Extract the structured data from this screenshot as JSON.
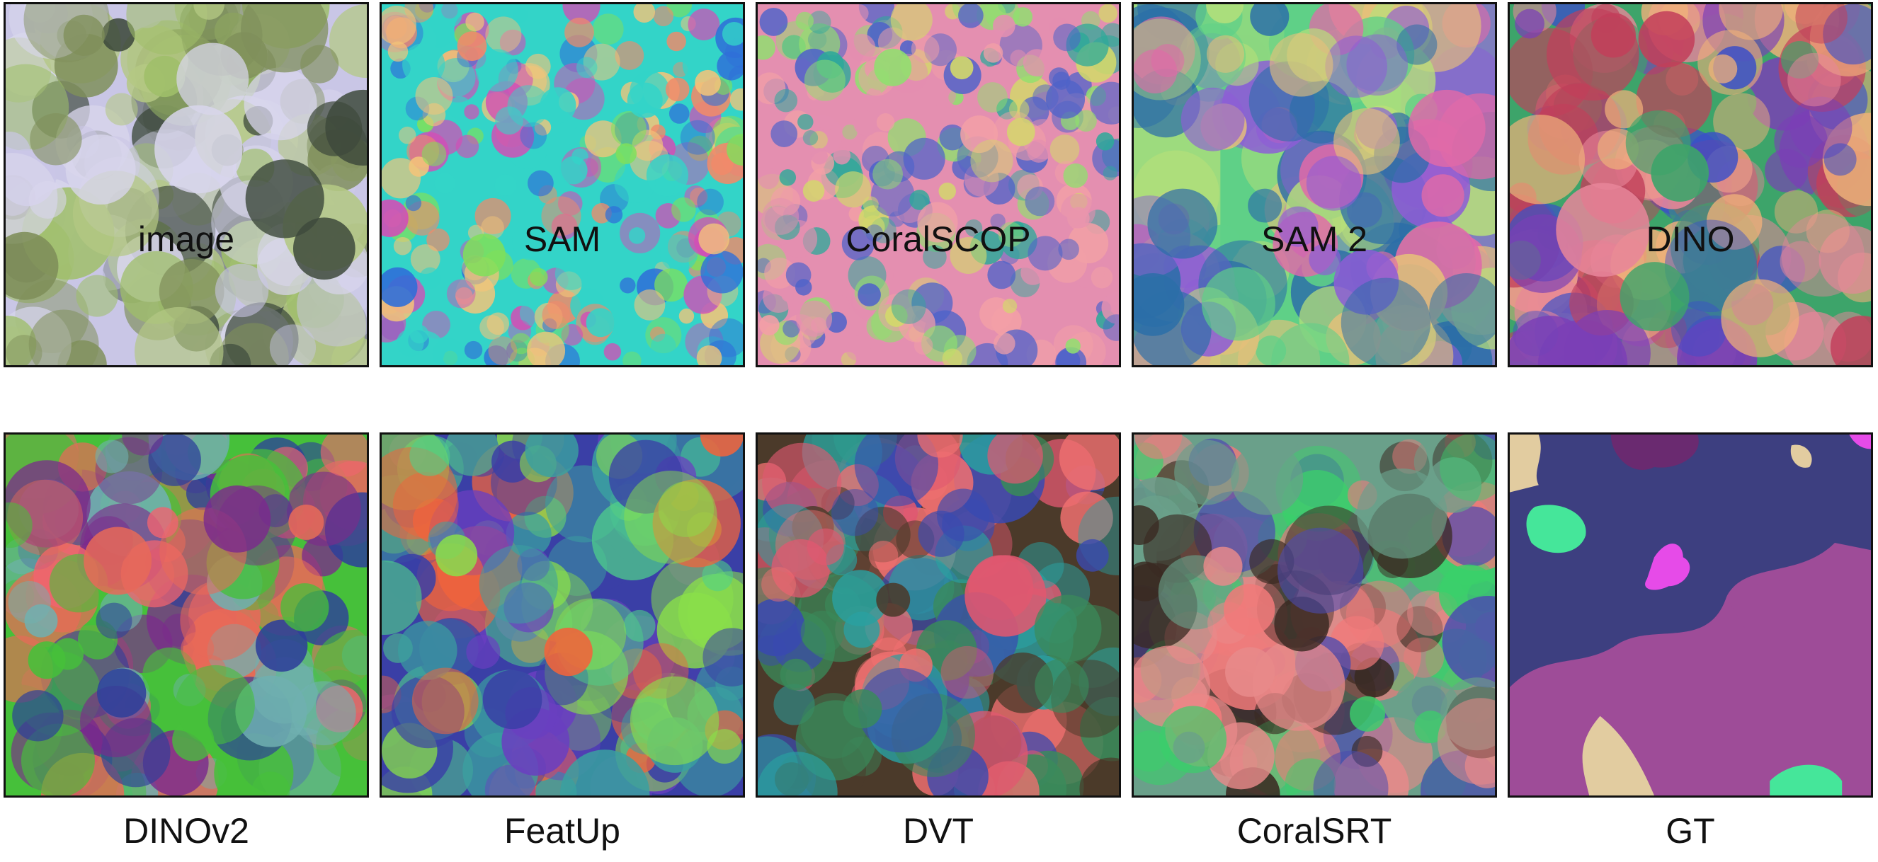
{
  "figure": {
    "panels": [
      {
        "caption": "image",
        "palette": [
          "#c9c6e6",
          "#9fbf6a",
          "#b4c884",
          "#3e4a3c",
          "#d8d6ec",
          "#7f8f5a"
        ]
      },
      {
        "caption": "SAM",
        "palette": [
          "#33d4c8",
          "#f08a6a",
          "#d14fb6",
          "#7fe05a",
          "#f2c47a",
          "#2f6fd8"
        ]
      },
      {
        "caption": "CoralSCOP",
        "palette": [
          "#e48fb0",
          "#f2a0a6",
          "#2ea99a",
          "#4e63c9",
          "#8fe06e",
          "#d3d96a"
        ]
      },
      {
        "caption": "SAM 2",
        "palette": [
          "#5fd088",
          "#e6c07a",
          "#8d5dd6",
          "#e06aa8",
          "#2b6ea8",
          "#b8e07a"
        ]
      },
      {
        "caption": "DINO",
        "palette": [
          "#3da46a",
          "#e8869a",
          "#f0b07a",
          "#7b3fb6",
          "#3b4fc8",
          "#c23f5a"
        ]
      },
      {
        "caption": "DINOv2",
        "palette": [
          "#46c03a",
          "#e86a58",
          "#2d3f9a",
          "#70b0b0",
          "#f06470",
          "#7b2a8c"
        ]
      },
      {
        "caption": "FeatUp",
        "palette": [
          "#3a3fa6",
          "#f0643c",
          "#4fd08a",
          "#6a3fc0",
          "#8ae04a",
          "#3aa0a0"
        ]
      },
      {
        "caption": "DVT",
        "palette": [
          "#4b3a2a",
          "#e05870",
          "#3a8a5a",
          "#3a4ab0",
          "#f07070",
          "#2aa0a0"
        ]
      },
      {
        "caption": "CoralSRT",
        "palette": [
          "#6aa08a",
          "#f07a7a",
          "#3ad06a",
          "#4a4ab0",
          "#3a2a22",
          "#e88a8a"
        ]
      },
      {
        "caption": "GT",
        "palette": [
          "#3d3f80",
          "#9e4c98",
          "#e2cca0",
          "#45e69a",
          "#e64be8",
          "#6a2a70"
        ]
      }
    ]
  }
}
